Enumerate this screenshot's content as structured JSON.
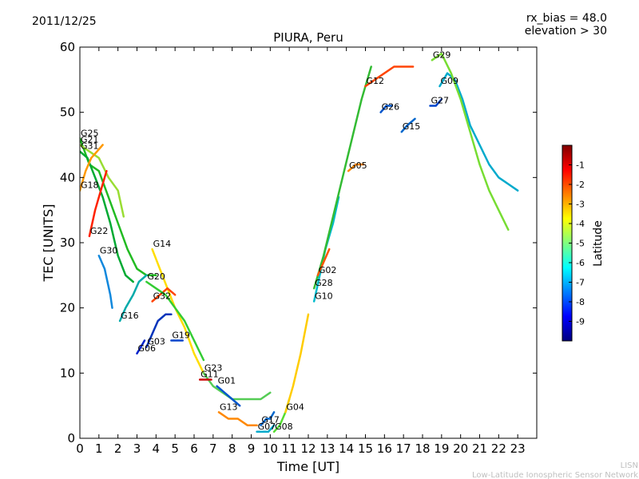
{
  "header": {
    "date": "2011/12/25",
    "rx_bias": "rx_bias = 48.0",
    "elevation": "elevation > 30"
  },
  "footer": {
    "org_short": "LISN",
    "org_full": "Low-Latitude Ionospheric Sensor Network"
  },
  "chart_data": {
    "type": "line",
    "title": "PIURA, Peru",
    "xlabel": "Time [UT]",
    "ylabel": "TEC [UNITS]",
    "xlim": [
      0,
      24
    ],
    "ylim": [
      0,
      60
    ],
    "xticks": [
      0,
      1,
      2,
      3,
      4,
      5,
      6,
      7,
      8,
      9,
      10,
      11,
      12,
      13,
      14,
      15,
      16,
      17,
      18,
      19,
      20,
      21,
      22,
      23
    ],
    "yticks": [
      0,
      10,
      20,
      30,
      40,
      50,
      60
    ],
    "colorbar": {
      "label": "Latitude",
      "min": -10,
      "max": 0,
      "ticks": [
        -1,
        -2,
        -3,
        -4,
        -5,
        -6,
        -7,
        -8,
        -9
      ],
      "colors": [
        "#00007f",
        "#0000ff",
        "#007fff",
        "#00ffff",
        "#7fff7f",
        "#ffff00",
        "#ff7f00",
        "#ff0000",
        "#7f0000"
      ]
    },
    "series": [
      {
        "name": "G25",
        "color": "#22bb22",
        "x": [
          0,
          0.5,
          1,
          1.5,
          2,
          2.5,
          3,
          3.5,
          4
        ],
        "y": [
          46,
          42,
          41,
          37,
          33,
          29,
          26,
          25,
          25
        ]
      },
      {
        "name": "G31",
        "color": "#00aa33",
        "x": [
          0,
          0.4,
          0.8,
          1.2,
          1.6,
          2.0,
          2.4,
          2.8
        ],
        "y": [
          44,
          43,
          40,
          37,
          33,
          28,
          25,
          24
        ]
      },
      {
        "name": "G21",
        "color": "#99dd33",
        "x": [
          0,
          0.5,
          1,
          1.5,
          2,
          2.3
        ],
        "y": [
          45,
          44,
          43,
          40,
          38,
          34
        ]
      },
      {
        "name": "G18",
        "color": "#ff9900",
        "x": [
          0,
          0.3,
          0.6,
          0.9,
          1.2
        ],
        "y": [
          38,
          41,
          43,
          44,
          45
        ]
      },
      {
        "name": "G22",
        "color": "#ff2200",
        "x": [
          0.5,
          0.8,
          1.1,
          1.4
        ],
        "y": [
          31,
          35,
          38,
          41
        ]
      },
      {
        "name": "G30",
        "color": "#1188dd",
        "x": [
          1.0,
          1.3,
          1.6,
          1.7
        ],
        "y": [
          28,
          26,
          22,
          20
        ]
      },
      {
        "name": "G16",
        "color": "#00aaaa",
        "x": [
          2.1,
          2.4,
          2.8,
          3.1,
          3.5
        ],
        "y": [
          18,
          20,
          22,
          24,
          25
        ]
      },
      {
        "name": "G06",
        "color": "#0022cc",
        "x": [
          3.0,
          3.2,
          3.4
        ],
        "y": [
          13,
          14,
          15
        ]
      },
      {
        "name": "G03",
        "color": "#0033bb",
        "x": [
          3.5,
          3.8,
          4.1,
          4.5,
          4.8
        ],
        "y": [
          14,
          16,
          18,
          19,
          19
        ]
      },
      {
        "name": "G14",
        "color": "#ffdd00",
        "x": [
          3.8,
          4.2,
          4.6,
          5.0,
          5.5,
          6.0,
          6.5
        ],
        "y": [
          29,
          26,
          23,
          20,
          17,
          13,
          10
        ]
      },
      {
        "name": "G32",
        "color": "#ff4400",
        "x": [
          3.8,
          4.2,
          4.6,
          5.0
        ],
        "y": [
          21,
          22,
          23,
          22
        ]
      },
      {
        "name": "G20",
        "color": "#33cc33",
        "x": [
          3.5,
          4.0,
          4.5,
          5.0,
          5.5,
          6.0,
          6.5
        ],
        "y": [
          24,
          23,
          22,
          20,
          18,
          15,
          12
        ]
      },
      {
        "name": "G19",
        "color": "#0044cc",
        "x": [
          4.8,
          5.1,
          5.4
        ],
        "y": [
          15,
          15,
          15
        ]
      },
      {
        "name": "G23",
        "color": "#55cc55",
        "x": [
          6.5,
          7.0,
          7.5,
          8.0,
          8.5,
          9.0,
          9.5,
          10.0
        ],
        "y": [
          10,
          8,
          7,
          6,
          6,
          6,
          6,
          7
        ]
      },
      {
        "name": "G11",
        "color": "#cc0000",
        "x": [
          6.3,
          6.6,
          6.9
        ],
        "y": [
          9,
          9,
          9
        ]
      },
      {
        "name": "G01",
        "color": "#0055cc",
        "x": [
          7.2,
          7.6,
          8.0,
          8.4
        ],
        "y": [
          8,
          7,
          6,
          5
        ]
      },
      {
        "name": "G13",
        "color": "#ff8800",
        "x": [
          7.3,
          7.8,
          8.3,
          8.8,
          9.3
        ],
        "y": [
          4,
          3,
          3,
          2,
          2
        ]
      },
      {
        "name": "G17",
        "color": "#0066cc",
        "x": [
          9.5,
          9.8,
          10.0,
          10.2
        ],
        "y": [
          2,
          3,
          3,
          4
        ]
      },
      {
        "name": "G07",
        "color": "#00aacc",
        "x": [
          9.3,
          9.6,
          9.9,
          10.2
        ],
        "y": [
          1,
          1,
          1,
          2
        ]
      },
      {
        "name": "G08",
        "color": "#55dd33",
        "x": [
          10.2,
          10.5,
          10.8,
          11.0
        ],
        "y": [
          1,
          2,
          4,
          6
        ]
      },
      {
        "name": "G04",
        "color": "#ffcc00",
        "x": [
          10.8,
          11.2,
          11.6,
          12.0
        ],
        "y": [
          4,
          8,
          13,
          19
        ]
      },
      {
        "name": "G10",
        "color": "#00bbcc",
        "x": [
          12.3,
          12.6,
          12.9,
          13.3,
          13.6
        ],
        "y": [
          21,
          25,
          29,
          33,
          37
        ]
      },
      {
        "name": "G28",
        "color": "#33bb33",
        "x": [
          12.3,
          12.8,
          13.3,
          13.8,
          14.3,
          14.8,
          15.3
        ],
        "y": [
          23,
          28,
          34,
          40,
          46,
          52,
          57
        ]
      },
      {
        "name": "G02",
        "color": "#ff5500",
        "x": [
          12.5,
          12.8,
          13.1
        ],
        "y": [
          25,
          27,
          29
        ]
      },
      {
        "name": "G05",
        "color": "#ff8800",
        "x": [
          14.1,
          14.5,
          14.9
        ],
        "y": [
          41,
          42,
          42
        ]
      },
      {
        "name": "G26",
        "color": "#0055cc",
        "x": [
          15.8,
          16.1,
          16.4
        ],
        "y": [
          50,
          51,
          51
        ]
      },
      {
        "name": "G12",
        "color": "#ff4400",
        "x": [
          15.0,
          15.5,
          16.0,
          16.5,
          17.0,
          17.5
        ],
        "y": [
          54,
          55,
          56,
          57,
          57,
          57
        ]
      },
      {
        "name": "G15",
        "color": "#0066cc",
        "x": [
          16.9,
          17.2,
          17.6
        ],
        "y": [
          47,
          48,
          49
        ]
      },
      {
        "name": "G27",
        "color": "#0044cc",
        "x": [
          18.4,
          18.7,
          19.0
        ],
        "y": [
          51,
          51,
          52
        ]
      },
      {
        "name": "G09",
        "color": "#00aacc",
        "x": [
          18.9,
          19.3,
          19.7,
          20.1,
          20.5,
          21.0,
          21.5,
          22.0,
          22.5,
          23.0
        ],
        "y": [
          54,
          56,
          55,
          52,
          48,
          45,
          42,
          40,
          39,
          38
        ]
      },
      {
        "name": "G29",
        "color": "#77dd33",
        "x": [
          18.5,
          19.0,
          19.5,
          20.0,
          20.5,
          21.0,
          21.5,
          22.0,
          22.5
        ],
        "y": [
          58,
          59,
          56,
          52,
          47,
          42,
          38,
          35,
          32
        ]
      }
    ]
  }
}
